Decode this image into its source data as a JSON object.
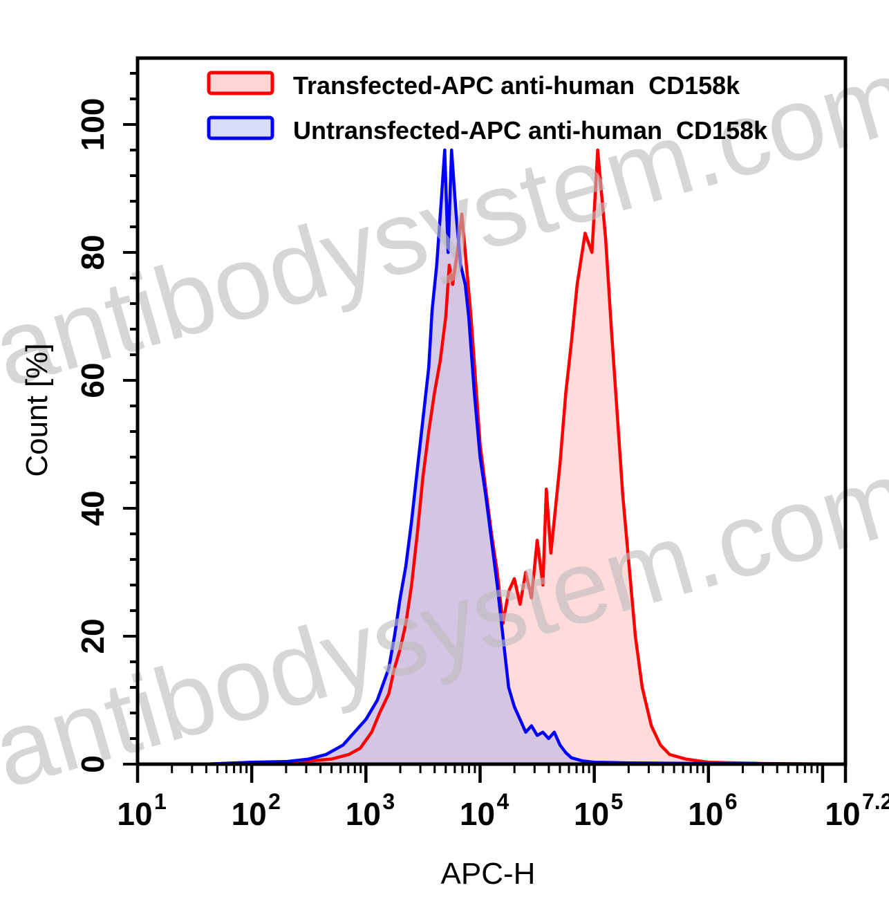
{
  "chart_data": {
    "type": "area",
    "title": "",
    "xlabel": "APC-H",
    "ylabel": "Count [%]",
    "xscale": "log",
    "xlim_log10": [
      1,
      7.2
    ],
    "ylim": [
      0,
      110
    ],
    "x_tick_labels": [
      {
        "base": "10",
        "exp": "1",
        "log10": 1
      },
      {
        "base": "10",
        "exp": "2",
        "log10": 2
      },
      {
        "base": "10",
        "exp": "3",
        "log10": 3
      },
      {
        "base": "10",
        "exp": "4",
        "log10": 4
      },
      {
        "base": "10",
        "exp": "5",
        "log10": 5
      },
      {
        "base": "10",
        "exp": "6",
        "log10": 6
      },
      {
        "base": "10",
        "exp": "7.2",
        "log10": 7.2
      }
    ],
    "y_ticks": [
      0,
      20,
      40,
      60,
      80,
      100
    ],
    "grid": false,
    "legend_position": "top-inside",
    "legend": [
      {
        "label": "Transfected-APC anti-human  CD158k",
        "line_color": "#ff0000",
        "fill_color": "#ffd6d6"
      },
      {
        "label": "Untransfected-APC anti-human  CD158k",
        "line_color": "#0000ff",
        "fill_color": "#d8dcf6"
      }
    ],
    "series": [
      {
        "name": "Transfected-APC anti-human  CD158k",
        "color": "#ff0000",
        "fill": "#ffcfcf",
        "points_log10x_count": [
          [
            1.0,
            0
          ],
          [
            1.6,
            0
          ],
          [
            2.0,
            0.3
          ],
          [
            2.3,
            0.3
          ],
          [
            2.5,
            0.5
          ],
          [
            2.7,
            0.8
          ],
          [
            2.85,
            1.5
          ],
          [
            2.95,
            2.5
          ],
          [
            3.05,
            5
          ],
          [
            3.12,
            8
          ],
          [
            3.2,
            11
          ],
          [
            3.25,
            15
          ],
          [
            3.3,
            18
          ],
          [
            3.35,
            22
          ],
          [
            3.4,
            28
          ],
          [
            3.45,
            36
          ],
          [
            3.5,
            45
          ],
          [
            3.55,
            52
          ],
          [
            3.6,
            58
          ],
          [
            3.65,
            63
          ],
          [
            3.7,
            70
          ],
          [
            3.73,
            78
          ],
          [
            3.76,
            75
          ],
          [
            3.8,
            80
          ],
          [
            3.84,
            86
          ],
          [
            3.88,
            78
          ],
          [
            3.92,
            70
          ],
          [
            3.96,
            60
          ],
          [
            4.0,
            50
          ],
          [
            4.05,
            43
          ],
          [
            4.1,
            36
          ],
          [
            4.15,
            30
          ],
          [
            4.2,
            22
          ],
          [
            4.25,
            27
          ],
          [
            4.3,
            29
          ],
          [
            4.35,
            25
          ],
          [
            4.4,
            30
          ],
          [
            4.45,
            26
          ],
          [
            4.5,
            35
          ],
          [
            4.55,
            28
          ],
          [
            4.58,
            43
          ],
          [
            4.62,
            33
          ],
          [
            4.66,
            40
          ],
          [
            4.7,
            47
          ],
          [
            4.75,
            58
          ],
          [
            4.8,
            66
          ],
          [
            4.85,
            75
          ],
          [
            4.92,
            83
          ],
          [
            4.98,
            80
          ],
          [
            5.03,
            96
          ],
          [
            5.07,
            88
          ],
          [
            5.1,
            82
          ],
          [
            5.15,
            68
          ],
          [
            5.2,
            55
          ],
          [
            5.25,
            42
          ],
          [
            5.3,
            32
          ],
          [
            5.36,
            20
          ],
          [
            5.42,
            12
          ],
          [
            5.5,
            6
          ],
          [
            5.58,
            3
          ],
          [
            5.66,
            1.5
          ],
          [
            5.8,
            0.8
          ],
          [
            6.0,
            0.3
          ],
          [
            6.5,
            0.1
          ],
          [
            7.2,
            0
          ]
        ]
      },
      {
        "name": "Untransfected-APC anti-human  CD158k",
        "color": "#0000ff",
        "fill": "#d5dcf7",
        "points_log10x_count": [
          [
            1.0,
            0
          ],
          [
            1.6,
            0
          ],
          [
            2.0,
            0.3
          ],
          [
            2.3,
            0.4
          ],
          [
            2.5,
            0.8
          ],
          [
            2.65,
            1.5
          ],
          [
            2.8,
            3
          ],
          [
            2.9,
            5
          ],
          [
            3.0,
            7
          ],
          [
            3.1,
            10
          ],
          [
            3.2,
            15
          ],
          [
            3.25,
            20
          ],
          [
            3.3,
            26
          ],
          [
            3.35,
            31
          ],
          [
            3.4,
            38
          ],
          [
            3.45,
            46
          ],
          [
            3.5,
            54
          ],
          [
            3.55,
            62
          ],
          [
            3.58,
            71
          ],
          [
            3.62,
            78
          ],
          [
            3.66,
            88
          ],
          [
            3.69,
            96
          ],
          [
            3.72,
            80
          ],
          [
            3.75,
            96
          ],
          [
            3.79,
            86
          ],
          [
            3.83,
            78
          ],
          [
            3.87,
            75
          ],
          [
            3.9,
            70
          ],
          [
            3.95,
            58
          ],
          [
            4.0,
            48
          ],
          [
            4.05,
            42
          ],
          [
            4.1,
            35
          ],
          [
            4.15,
            28
          ],
          [
            4.2,
            20
          ],
          [
            4.25,
            12
          ],
          [
            4.3,
            9
          ],
          [
            4.35,
            7
          ],
          [
            4.4,
            5
          ],
          [
            4.45,
            6
          ],
          [
            4.5,
            4.5
          ],
          [
            4.55,
            5
          ],
          [
            4.6,
            4
          ],
          [
            4.65,
            5
          ],
          [
            4.7,
            3
          ],
          [
            4.75,
            1.8
          ],
          [
            4.8,
            1
          ],
          [
            4.9,
            0.5
          ],
          [
            5.0,
            0.3
          ],
          [
            5.3,
            0.2
          ],
          [
            6.0,
            0.1
          ],
          [
            7.2,
            0
          ]
        ]
      }
    ]
  },
  "watermark": {
    "text": "antibodysystem.com"
  }
}
